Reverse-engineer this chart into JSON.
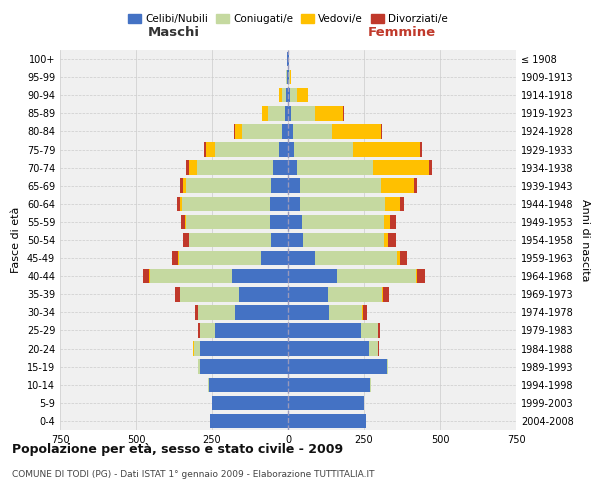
{
  "age_groups": [
    "0-4",
    "5-9",
    "10-14",
    "15-19",
    "20-24",
    "25-29",
    "30-34",
    "35-39",
    "40-44",
    "45-49",
    "50-54",
    "55-59",
    "60-64",
    "65-69",
    "70-74",
    "75-79",
    "80-84",
    "85-89",
    "90-94",
    "95-99",
    "100+"
  ],
  "birth_years": [
    "2004-2008",
    "1999-2003",
    "1994-1998",
    "1989-1993",
    "1984-1988",
    "1979-1983",
    "1974-1978",
    "1969-1973",
    "1964-1968",
    "1959-1963",
    "1954-1958",
    "1949-1953",
    "1944-1948",
    "1939-1943",
    "1934-1938",
    "1929-1933",
    "1924-1928",
    "1919-1923",
    "1914-1918",
    "1909-1913",
    "≤ 1908"
  ],
  "maschi": {
    "celibi": [
      255,
      250,
      260,
      290,
      290,
      240,
      175,
      160,
      185,
      90,
      55,
      60,
      60,
      55,
      50,
      30,
      20,
      10,
      5,
      3,
      2
    ],
    "coniugati": [
      0,
      1,
      2,
      5,
      20,
      50,
      120,
      195,
      270,
      270,
      270,
      275,
      290,
      280,
      250,
      210,
      130,
      55,
      15,
      3,
      1
    ],
    "vedovi": [
      0,
      0,
      0,
      0,
      1,
      1,
      1,
      1,
      1,
      2,
      2,
      3,
      5,
      10,
      25,
      30,
      25,
      20,
      10,
      2,
      1
    ],
    "divorziati": [
      0,
      0,
      0,
      0,
      2,
      5,
      10,
      15,
      20,
      20,
      20,
      15,
      10,
      10,
      10,
      5,
      3,
      2,
      1,
      0,
      0
    ]
  },
  "femmine": {
    "nubili": [
      255,
      250,
      270,
      325,
      265,
      240,
      135,
      130,
      160,
      90,
      50,
      45,
      40,
      40,
      30,
      20,
      15,
      10,
      5,
      3,
      2
    ],
    "coniugate": [
      0,
      0,
      2,
      5,
      30,
      55,
      110,
      180,
      260,
      270,
      265,
      270,
      280,
      265,
      250,
      195,
      130,
      80,
      25,
      3,
      1
    ],
    "vedove": [
      0,
      0,
      0,
      0,
      1,
      1,
      1,
      2,
      5,
      10,
      15,
      20,
      50,
      110,
      185,
      220,
      160,
      90,
      35,
      3,
      1
    ],
    "divorziate": [
      0,
      0,
      0,
      0,
      2,
      5,
      15,
      20,
      25,
      20,
      25,
      20,
      10,
      10,
      10,
      5,
      5,
      3,
      2,
      0,
      0
    ]
  },
  "colors": {
    "celibi_nubili": "#4472c4",
    "coniugati": "#c5d9a0",
    "vedovi": "#ffc000",
    "divorziati": "#c0392b"
  },
  "title": "Popolazione per età, sesso e stato civile - 2009",
  "subtitle": "COMUNE DI TODI (PG) - Dati ISTAT 1° gennaio 2009 - Elaborazione TUTTITALIA.IT",
  "xlabel_left": "Maschi",
  "xlabel_right": "Femmine",
  "ylabel_left": "Fasce di età",
  "ylabel_right": "Anni di nascita",
  "xlim": 750,
  "bg_color": "#f0f0f0",
  "grid_color": "#cccccc"
}
